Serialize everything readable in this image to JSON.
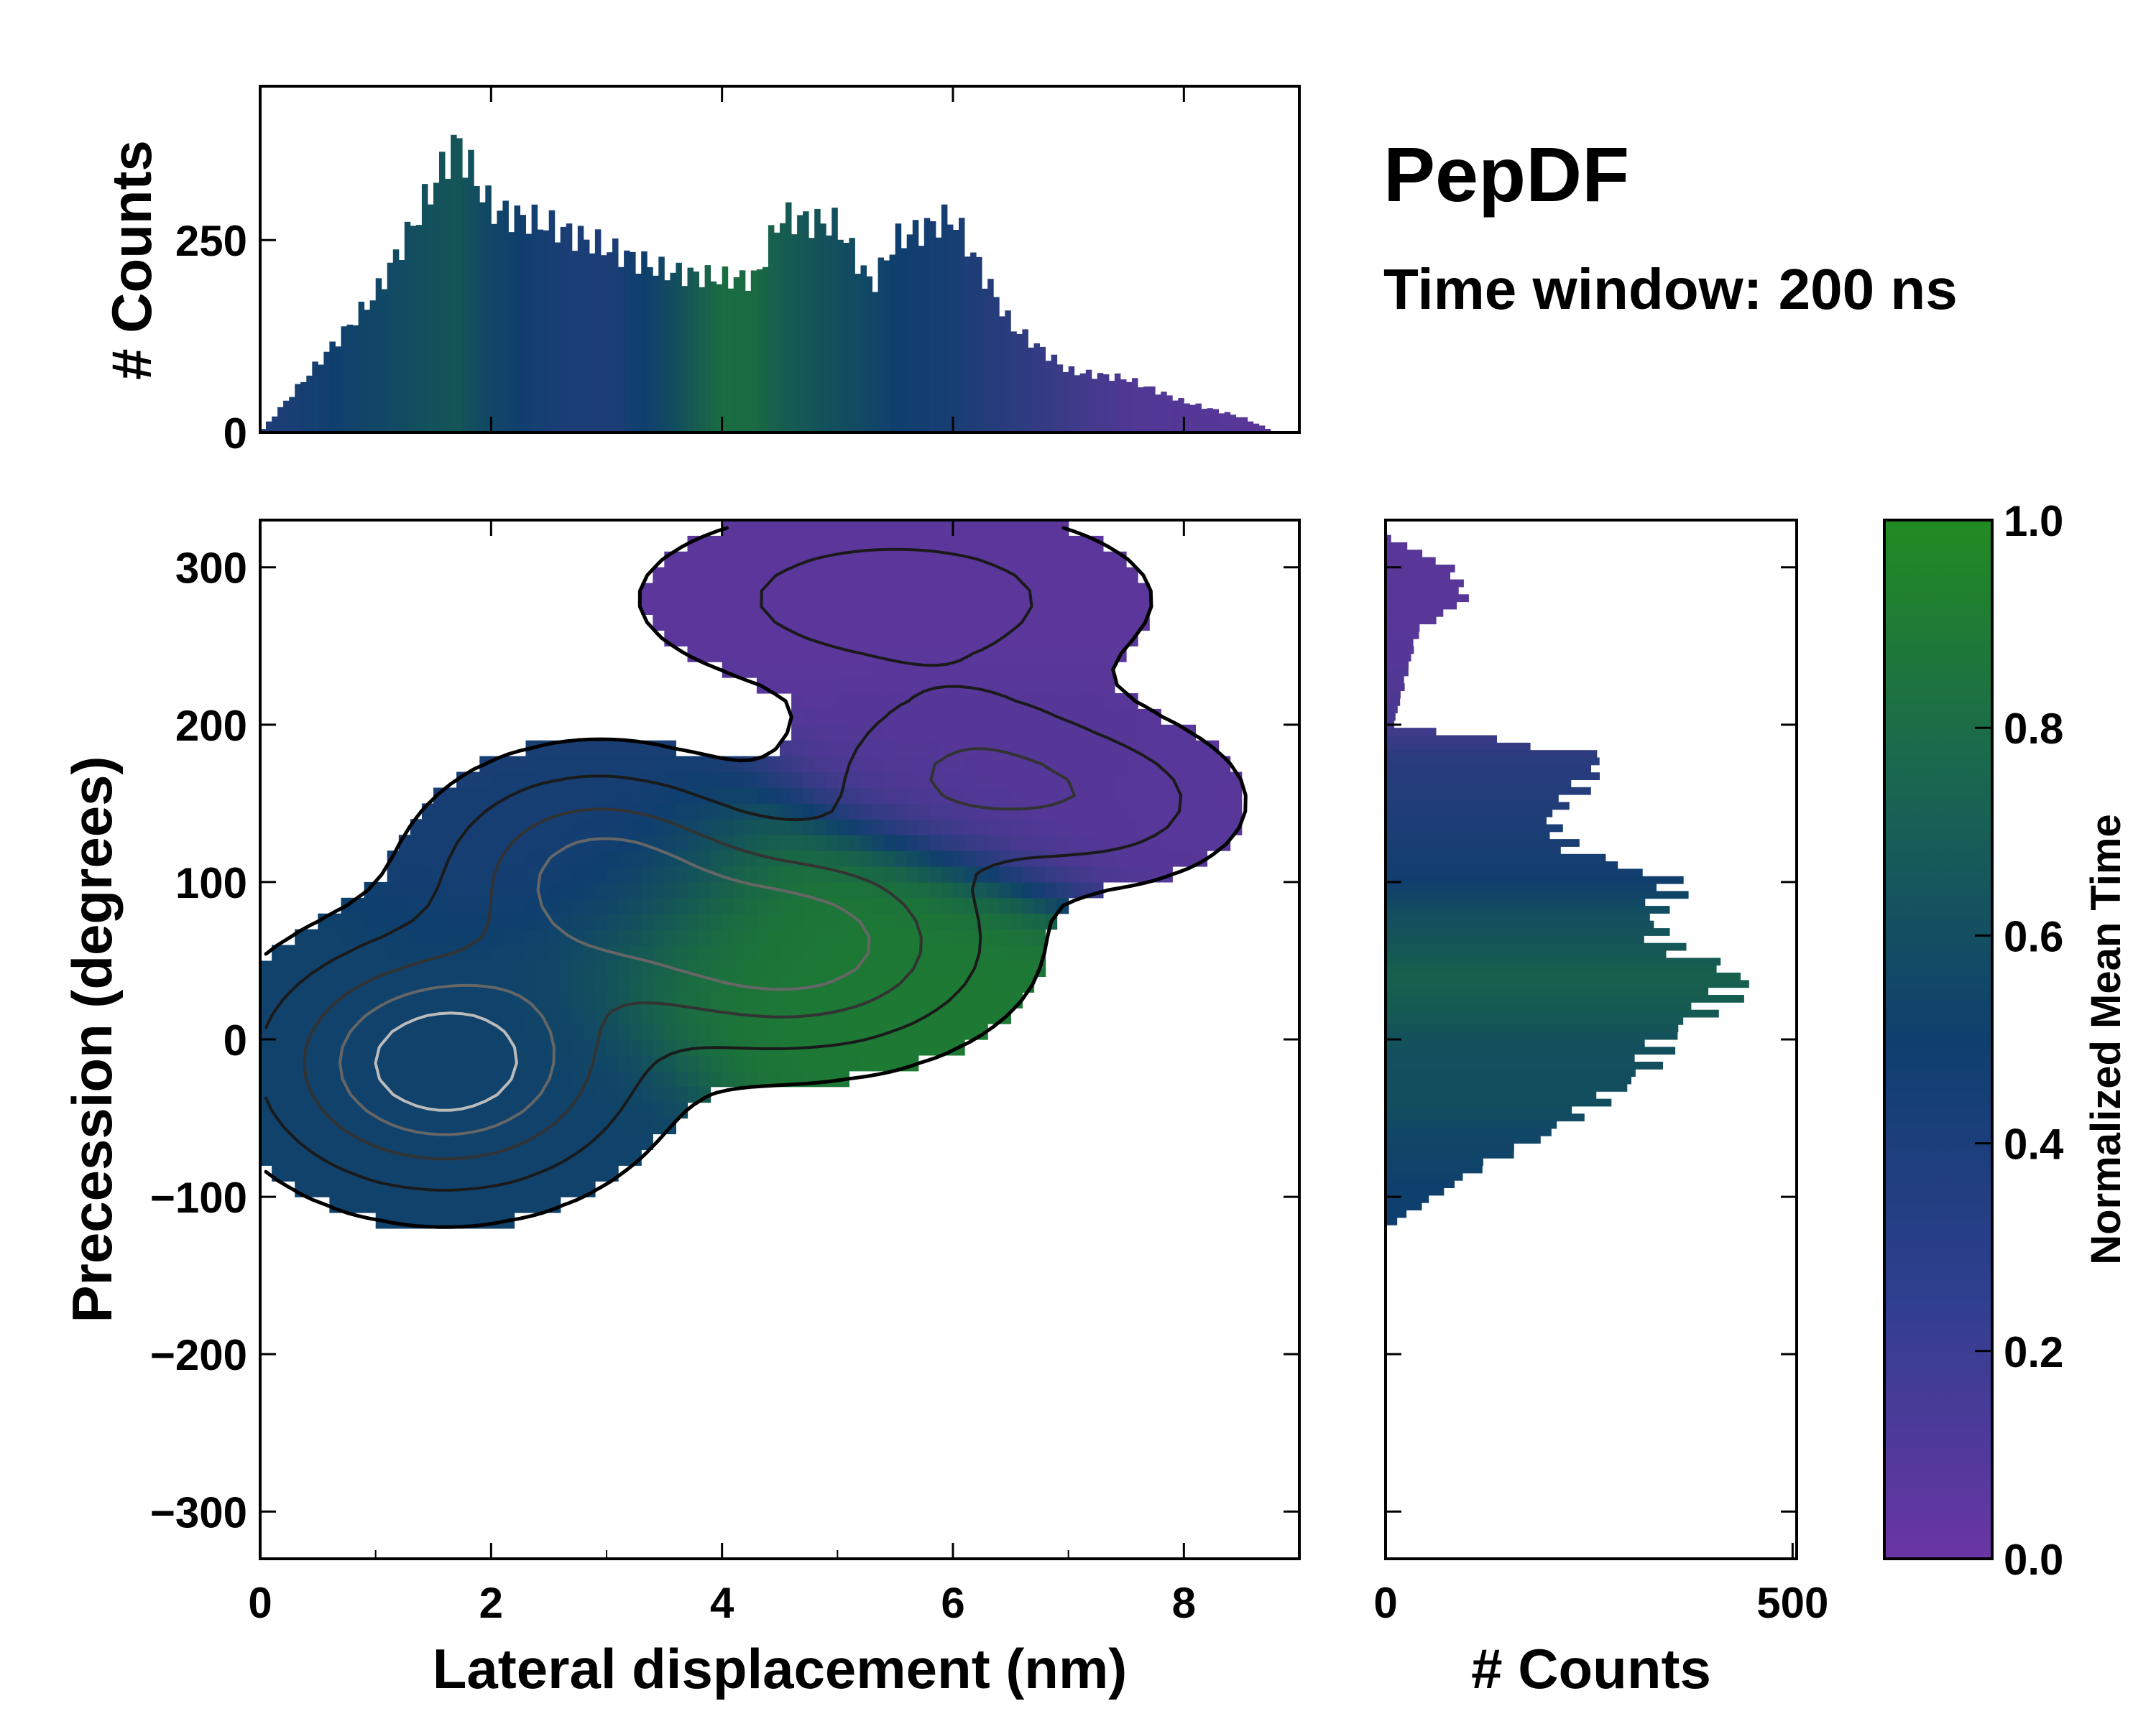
{
  "figure": {
    "title": "PepDF",
    "subtitle": "Time window: 200 ns"
  },
  "colors": {
    "low": "#6a35a4",
    "mid": "#0f3f6e",
    "high": "#228b22",
    "contour": "#000000",
    "frame": "#000000"
  },
  "chart_data": [
    {
      "type": "heatmap",
      "name": "main-2d-histogram",
      "xlabel": "Lateral displacement (nm)",
      "ylabel": "Precession (degrees)",
      "xlim": [
        0,
        9
      ],
      "ylim": [
        -330,
        330
      ],
      "xticks": [
        0,
        2,
        4,
        6,
        8
      ],
      "xtick_labels": [
        "0",
        "2",
        "4",
        "6",
        "8"
      ],
      "yticks": [
        -300,
        -200,
        -100,
        0,
        100,
        200,
        300
      ],
      "ytick_labels": [
        "−300",
        "−200",
        "−100",
        "0",
        "100",
        "200",
        "300"
      ],
      "clusters": [
        {
          "x": 1.6,
          "y": -15,
          "sx": 0.9,
          "sy": 45,
          "count": 1.0,
          "time": 0.52
        },
        {
          "x": 2.9,
          "y": 105,
          "sx": 0.8,
          "sy": 40,
          "count": 0.65,
          "time": 0.45
        },
        {
          "x": 4.6,
          "y": 60,
          "sx": 1.0,
          "sy": 40,
          "count": 0.75,
          "time": 0.88
        },
        {
          "x": 6.1,
          "y": 170,
          "sx": 0.8,
          "sy": 35,
          "count": 0.4,
          "time": 0.12
        },
        {
          "x": 5.5,
          "y": 280,
          "sx": 1.3,
          "sy": 35,
          "count": 0.3,
          "time": 0.08
        },
        {
          "x": 7.4,
          "y": 150,
          "sx": 0.7,
          "sy": 30,
          "count": 0.25,
          "time": 0.1
        }
      ]
    },
    {
      "type": "bar",
      "name": "top-marginal-histogram",
      "ylabel": "# Counts",
      "xlim": [
        0,
        9
      ],
      "ylim": [
        0,
        450
      ],
      "yticks": [
        0,
        250
      ],
      "ytick_labels": [
        "0",
        "250"
      ],
      "x": [
        0.0,
        0.5,
        1.0,
        1.5,
        1.7,
        2.0,
        2.5,
        3.0,
        3.5,
        4.0,
        4.3,
        4.5,
        5.0,
        5.3,
        5.5,
        6.0,
        6.5,
        7.0,
        7.5,
        8.0,
        8.5,
        8.8
      ],
      "values": [
        0,
        90,
        180,
        320,
        380,
        290,
        270,
        240,
        210,
        200,
        200,
        280,
        270,
        190,
        250,
        280,
        140,
        80,
        70,
        40,
        20,
        0
      ],
      "time": [
        0.4,
        0.48,
        0.55,
        0.62,
        0.65,
        0.55,
        0.45,
        0.42,
        0.55,
        0.8,
        0.78,
        0.7,
        0.6,
        0.55,
        0.5,
        0.45,
        0.35,
        0.25,
        0.15,
        0.12,
        0.1,
        0.1
      ]
    },
    {
      "type": "bar",
      "name": "right-marginal-histogram",
      "orientation": "horizontal",
      "xlabel": "# Counts",
      "xlim": [
        0,
        505
      ],
      "xticks": [
        0,
        500
      ],
      "xtick_labels": [
        "0",
        "500"
      ],
      "ylim": [
        -330,
        330
      ],
      "y": [
        -120,
        -100,
        -80,
        -60,
        -40,
        -20,
        0,
        20,
        40,
        60,
        80,
        100,
        120,
        140,
        160,
        180,
        200,
        220,
        240,
        260,
        280,
        300,
        320
      ],
      "values": [
        0,
        60,
        120,
        200,
        260,
        320,
        340,
        400,
        440,
        340,
        330,
        360,
        230,
        200,
        240,
        270,
        10,
        20,
        30,
        40,
        100,
        80,
        0
      ],
      "time": [
        0.5,
        0.5,
        0.52,
        0.55,
        0.6,
        0.6,
        0.62,
        0.68,
        0.72,
        0.65,
        0.6,
        0.5,
        0.45,
        0.42,
        0.38,
        0.35,
        0.2,
        0.15,
        0.12,
        0.1,
        0.1,
        0.1,
        0.1
      ]
    },
    {
      "type": "colorbar",
      "name": "time-colorbar",
      "label": "Normalized Mean Time",
      "range": [
        0.0,
        1.0
      ],
      "ticks": [
        0.0,
        0.2,
        0.4,
        0.6,
        0.8,
        1.0
      ],
      "tick_labels": [
        "0.0",
        "0.2",
        "0.4",
        "0.6",
        "0.8",
        "1.0"
      ]
    }
  ]
}
